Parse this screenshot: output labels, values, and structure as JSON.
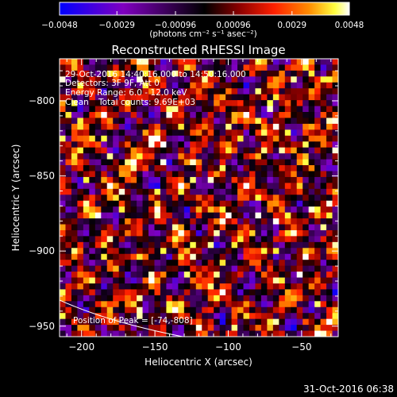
{
  "chart_data": {
    "type": "heatmap",
    "title": "Reconstructed RHESSI Image",
    "xlabel": "Heliocentric X (arcsec)",
    "ylabel": "Heliocentric Y (arcsec)",
    "xlim": [
      -215,
      -25
    ],
    "ylim": [
      -957,
      -772
    ],
    "x_ticks": [
      -200,
      -150,
      -100,
      -50
    ],
    "x_tick_labels": [
      "−200",
      "−150",
      "−100",
      "−50"
    ],
    "y_ticks": [
      -800,
      -850,
      -900,
      -950
    ],
    "y_tick_labels": [
      "−800",
      "−850",
      "−900",
      "−950"
    ],
    "colorbar": {
      "range": [
        -0.0048,
        0.0048
      ],
      "ticks": [
        -0.0048,
        -0.0029,
        -0.00096,
        0.00096,
        0.0029,
        0.0048
      ],
      "tick_labels": [
        "−0.0048",
        "−0.0029",
        "−0.00096",
        "0.00096",
        "0.0029",
        "0.0048"
      ],
      "unit_label": "(photons cm⁻² s⁻¹ asec⁻²)",
      "colors": [
        "#0000ff",
        "#8000c0",
        "#000000",
        "#8b0000",
        "#ff2000",
        "#ff8c00",
        "#ffff40",
        "#ffffff"
      ]
    },
    "annotations": {
      "time_range": "29-Oct-2016 14:40:16.000 to 14:50:16.000",
      "detectors": "Detectors: 3F 9F, Att 0",
      "energy_range": "Energy Range: 6.0 - 12.0 keV",
      "method": "Clean",
      "total_counts": "Total counts: 9.69E+03",
      "peak_position": "Position of Peak = [-74,-808]"
    },
    "grid": false,
    "legend": "none"
  },
  "footer": {
    "timestamp": "31-Oct-2016 06:38"
  }
}
